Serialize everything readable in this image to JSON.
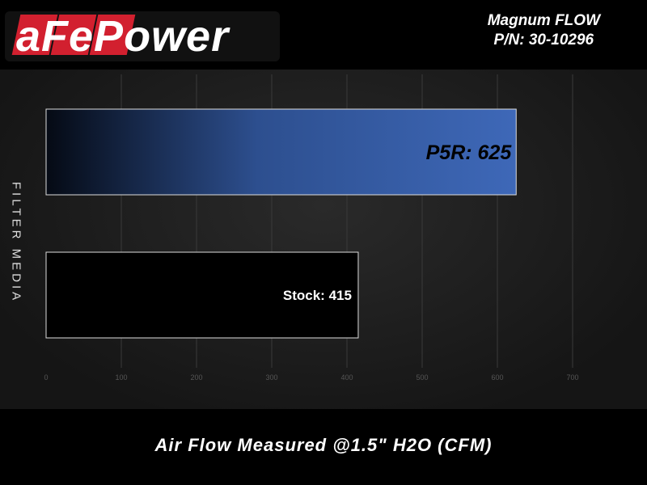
{
  "brand": {
    "logo_text": "aFePower"
  },
  "title": {
    "line1": "Magnum FLOW",
    "line2": "P/N: 30-10296"
  },
  "chart_data": {
    "type": "bar",
    "orientation": "horizontal",
    "categories": [
      "P5R",
      "Stock"
    ],
    "values": [
      625,
      415
    ],
    "data_labels": [
      "P5R: 625",
      "Stock: 415"
    ],
    "xlabel": "Air Flow Measured @1.5\" H2O (CFM)",
    "ylabel": "FILTER MEDIA",
    "xlim": [
      0,
      700
    ],
    "xticks": [
      0,
      100,
      200,
      300,
      400,
      500,
      600,
      700
    ],
    "grid": "vertical",
    "colors": {
      "P5R": "#3e68b8",
      "Stock": "#000000",
      "background": "#1c1c1c"
    }
  }
}
